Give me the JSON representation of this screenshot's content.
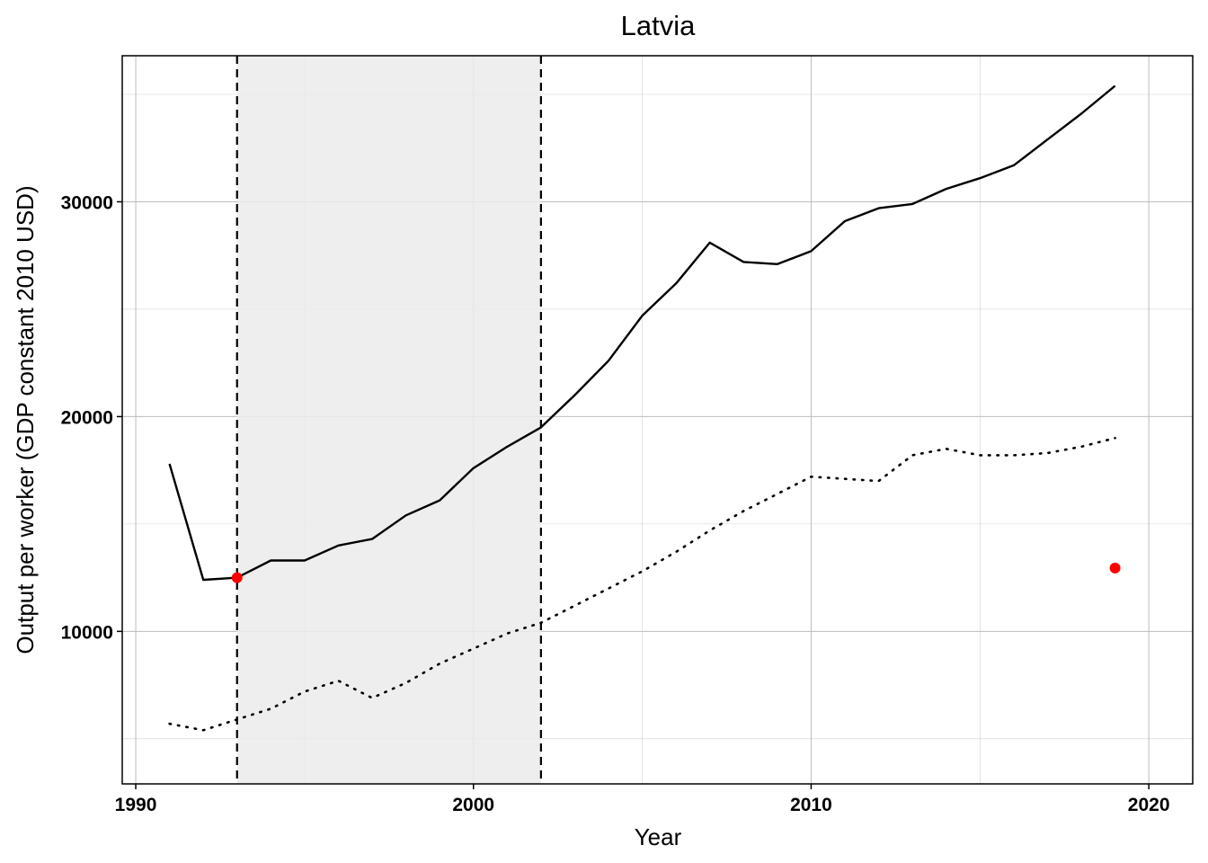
{
  "chart_data": {
    "type": "line",
    "title": "Latvia",
    "xlabel": "Year",
    "ylabel": "Output per worker (GDP constant 2010 USD)",
    "xlim": [
      1989.6,
      2021.3
    ],
    "ylim": [
      2900,
      36800
    ],
    "x_ticks": [
      1990,
      2000,
      2010,
      2020
    ],
    "y_ticks": [
      10000,
      20000,
      30000
    ],
    "x_minor_ticks": [
      1995,
      2005,
      2015
    ],
    "y_minor_ticks": [
      5000,
      15000,
      25000,
      35000
    ],
    "grid": true,
    "shaded_period": {
      "start": 1993,
      "end": 2002
    },
    "colors": {
      "line": "#000000",
      "marker": "#ff0000",
      "shade": "#ebebeb",
      "grid": "#bdbdbd"
    },
    "series": [
      {
        "style": "solid",
        "x": [
          1991,
          1992,
          1993,
          1994,
          1995,
          1996,
          1997,
          1998,
          1999,
          2000,
          2001,
          2002,
          2003,
          2004,
          2005,
          2006,
          2007,
          2008,
          2009,
          2010,
          2011,
          2012,
          2013,
          2014,
          2015,
          2016,
          2017,
          2018,
          2019
        ],
        "y": [
          17800,
          12400,
          12500,
          13300,
          13300,
          14000,
          14300,
          15400,
          16100,
          17600,
          18600,
          19500,
          21000,
          22600,
          24700,
          26200,
          28100,
          27200,
          27100,
          27700,
          29100,
          29700,
          29900,
          30600,
          31100,
          31700,
          32900,
          34100,
          35400
        ]
      },
      {
        "style": "dotted",
        "x": [
          1991,
          1992,
          1993,
          1994,
          1995,
          1996,
          1997,
          1998,
          1999,
          2000,
          2001,
          2002,
          2003,
          2004,
          2005,
          2006,
          2007,
          2008,
          2009,
          2010,
          2011,
          2012,
          2013,
          2014,
          2015,
          2016,
          2017,
          2018,
          2019
        ],
        "y": [
          5700,
          5400,
          5900,
          6400,
          7200,
          7700,
          6900,
          7600,
          8500,
          9200,
          9900,
          10400,
          11200,
          12000,
          12800,
          13700,
          14700,
          15600,
          16400,
          17200,
          17100,
          17000,
          18200,
          18500,
          18200,
          18200,
          18300,
          18600,
          19000
        ]
      }
    ],
    "markers": [
      {
        "x": 1993,
        "y": 12500
      },
      {
        "x": 2019,
        "y": 12950
      }
    ]
  }
}
